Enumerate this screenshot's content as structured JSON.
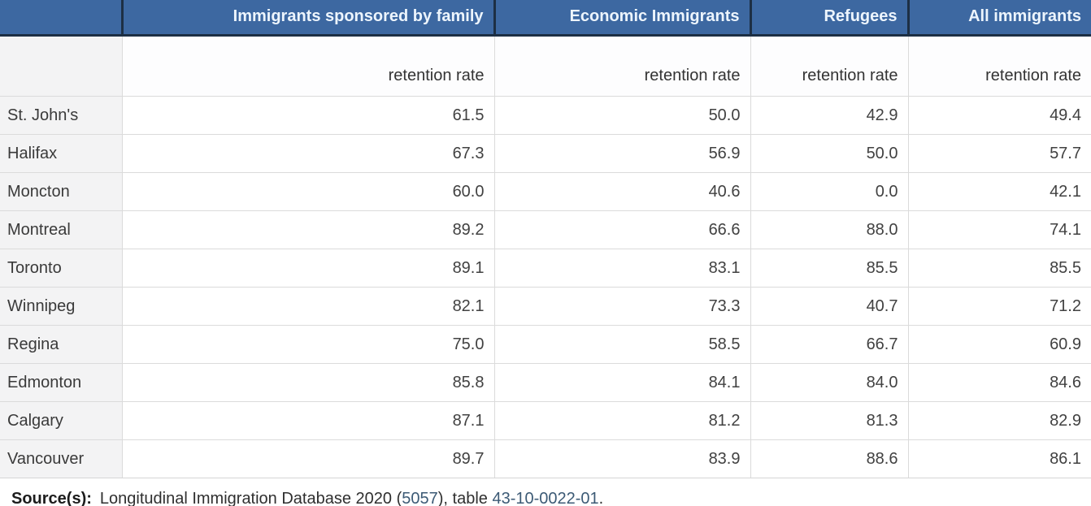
{
  "colors": {
    "header_bg": "#3d68a1",
    "header_text": "#edf5fd",
    "header_border": "#1d2f44",
    "rowlabel_bg": "#f3f3f4",
    "body_border": "#dbdbdb",
    "link": "#3c5a75"
  },
  "table": {
    "col_headers": [
      "",
      "Immigrants sponsored by family",
      "Economic Immigrants",
      "Refugees",
      "All immigrants"
    ],
    "subheader": "retention rate",
    "rows": [
      {
        "label": "St. John's",
        "values": [
          "61.5",
          "50.0",
          "42.9",
          "49.4"
        ]
      },
      {
        "label": "Halifax",
        "values": [
          "67.3",
          "56.9",
          "50.0",
          "57.7"
        ]
      },
      {
        "label": "Moncton",
        "values": [
          "60.0",
          "40.6",
          "0.0",
          "42.1"
        ]
      },
      {
        "label": "Montreal",
        "values": [
          "89.2",
          "66.6",
          "88.0",
          "74.1"
        ]
      },
      {
        "label": "Toronto",
        "values": [
          "89.1",
          "83.1",
          "85.5",
          "85.5"
        ]
      },
      {
        "label": "Winnipeg",
        "values": [
          "82.1",
          "73.3",
          "40.7",
          "71.2"
        ]
      },
      {
        "label": "Regina",
        "values": [
          "75.0",
          "58.5",
          "66.7",
          "60.9"
        ]
      },
      {
        "label": "Edmonton",
        "values": [
          "85.8",
          "84.1",
          "84.0",
          "84.6"
        ]
      },
      {
        "label": "Calgary",
        "values": [
          "87.1",
          "81.2",
          "81.3",
          "82.9"
        ]
      },
      {
        "label": "Vancouver",
        "values": [
          "89.7",
          "83.9",
          "88.6",
          "86.1"
        ]
      }
    ]
  },
  "source": {
    "label": "Source(s):",
    "text_before": "Longitudinal Immigration Database 2020 (",
    "link1": "5057",
    "text_mid": "), table ",
    "link2": "43-10-0022-01",
    "text_after": "."
  },
  "chart_data": {
    "type": "table",
    "title": "",
    "measure": "retention rate",
    "columns": [
      "Immigrants sponsored by family",
      "Economic Immigrants",
      "Refugees",
      "All immigrants"
    ],
    "row_labels": [
      "St. John's",
      "Halifax",
      "Moncton",
      "Montreal",
      "Toronto",
      "Winnipeg",
      "Regina",
      "Edmonton",
      "Calgary",
      "Vancouver"
    ],
    "values": [
      [
        61.5,
        50.0,
        42.9,
        49.4
      ],
      [
        67.3,
        56.9,
        50.0,
        57.7
      ],
      [
        60.0,
        40.6,
        0.0,
        42.1
      ],
      [
        89.2,
        66.6,
        88.0,
        74.1
      ],
      [
        89.1,
        83.1,
        85.5,
        85.5
      ],
      [
        82.1,
        73.3,
        40.7,
        71.2
      ],
      [
        75.0,
        58.5,
        66.7,
        60.9
      ],
      [
        85.8,
        84.1,
        84.0,
        84.6
      ],
      [
        87.1,
        81.2,
        81.3,
        82.9
      ],
      [
        89.7,
        83.9,
        88.6,
        86.1
      ]
    ],
    "source_note": "Source(s): Longitudinal Immigration Database 2020 (5057), table 43-10-0022-01."
  }
}
